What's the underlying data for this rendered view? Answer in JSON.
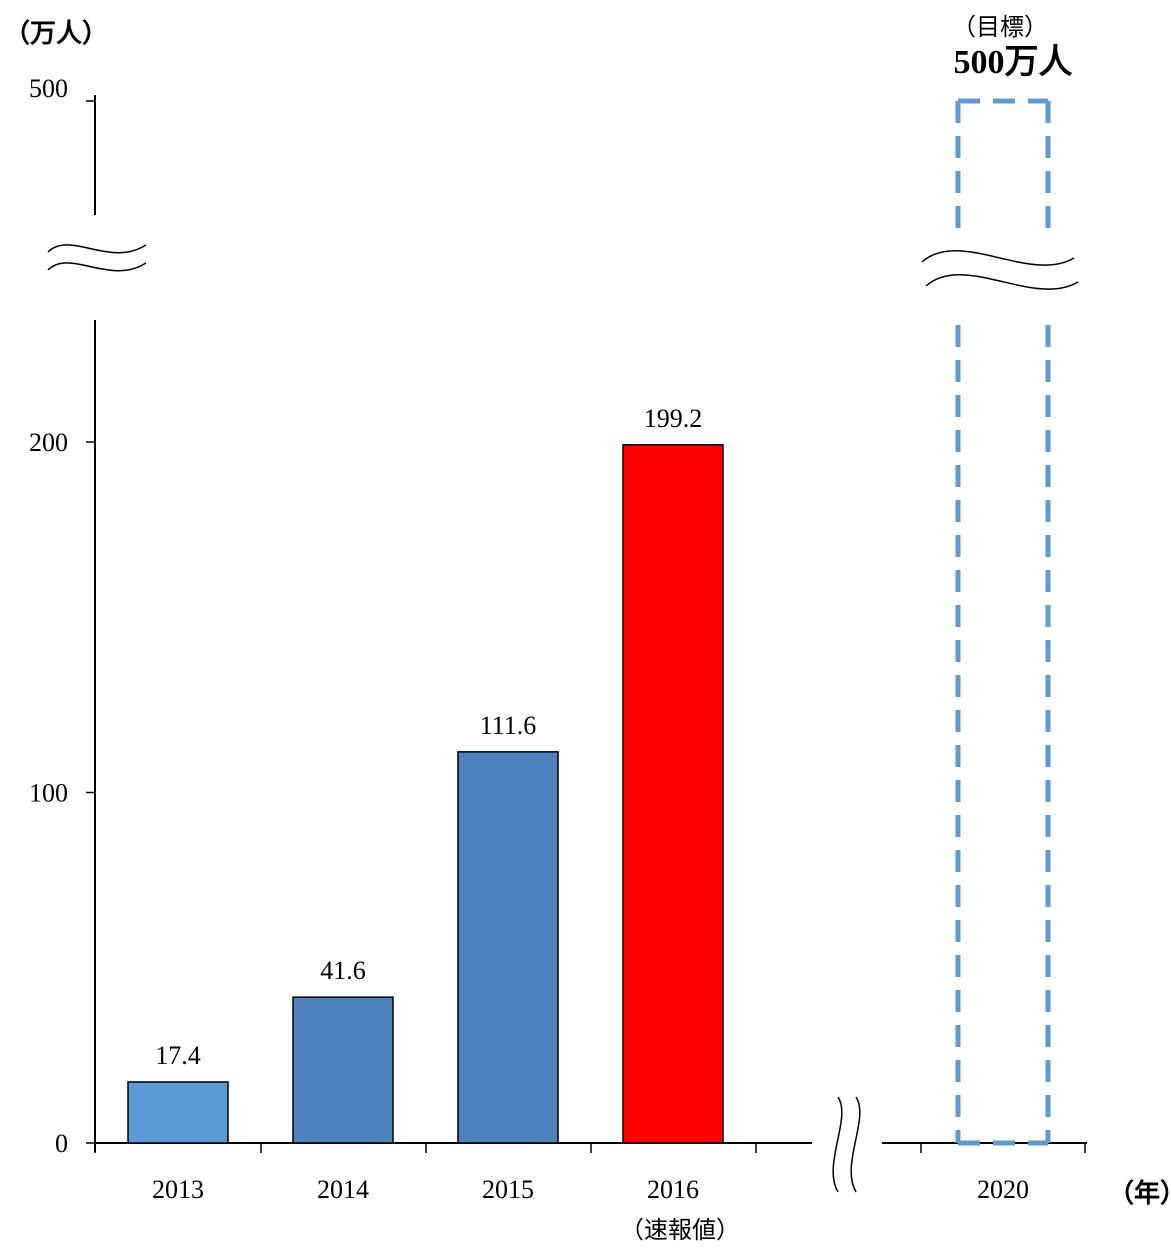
{
  "chart_data": {
    "type": "bar",
    "unit_label": "（万人）",
    "x_unit_label": "（年）",
    "categories": [
      "2013",
      "2014",
      "2015",
      "2016",
      "2020"
    ],
    "values": [
      17.4,
      41.6,
      111.6,
      199.2,
      500
    ],
    "data_labels": [
      "17.4",
      "41.6",
      "111.6",
      "199.2",
      null
    ],
    "category_sublabels": {
      "2016": "（速報値）"
    },
    "target": {
      "category": "2020",
      "label": "（目標）",
      "value_label": "500万人",
      "value": 500,
      "style": "dashed-outline"
    },
    "y_ticks": [
      0,
      100,
      200,
      500
    ],
    "ylim": [
      0,
      500
    ],
    "y_axis_break": {
      "from": 230,
      "to": 490
    },
    "x_axis_break_after": "2016",
    "colors": {
      "2013": "#5b9bd5",
      "2014": "#4f81bd",
      "2015": "#4f81bd",
      "2016": "#ff0000",
      "target_outline": "#5b9bd5",
      "axis": "#000000"
    },
    "grid": false,
    "legend": "none"
  }
}
